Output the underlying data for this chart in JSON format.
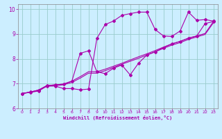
{
  "xlabel": "Windchill (Refroidissement éolien,°C)",
  "bg_color": "#cceeff",
  "grid_color": "#99cccc",
  "line_color": "#aa00aa",
  "xlim": [
    -0.5,
    23.5
  ],
  "ylim": [
    6,
    10.2
  ],
  "xticks": [
    0,
    1,
    2,
    3,
    4,
    5,
    6,
    7,
    8,
    9,
    10,
    11,
    12,
    13,
    14,
    15,
    16,
    17,
    18,
    19,
    20,
    21,
    22,
    23
  ],
  "yticks": [
    6,
    7,
    8,
    9,
    10
  ],
  "line1_x": [
    0,
    1,
    2,
    3,
    4,
    5,
    6,
    7,
    8,
    9,
    10,
    11,
    12,
    13,
    14,
    15,
    16,
    17,
    18,
    19,
    20,
    21,
    22,
    23
  ],
  "line1_y": [
    6.6,
    6.65,
    6.7,
    6.9,
    6.9,
    6.8,
    6.8,
    6.75,
    6.78,
    8.82,
    9.38,
    9.52,
    9.75,
    9.82,
    9.88,
    9.88,
    9.18,
    8.92,
    8.9,
    9.12,
    9.88,
    9.55,
    9.58,
    9.52
  ],
  "line2_x": [
    0,
    1,
    2,
    3,
    4,
    5,
    6,
    7,
    8,
    9,
    10,
    11,
    12,
    13,
    14,
    15,
    16,
    17,
    18,
    19,
    20,
    21,
    22,
    23
  ],
  "line2_y": [
    6.6,
    6.65,
    6.72,
    6.9,
    6.92,
    6.95,
    7.05,
    7.22,
    7.42,
    7.42,
    7.52,
    7.65,
    7.78,
    7.9,
    8.02,
    8.15,
    8.28,
    8.42,
    8.55,
    8.65,
    8.78,
    8.88,
    8.98,
    9.45
  ],
  "line3_x": [
    0,
    1,
    2,
    3,
    4,
    5,
    6,
    7,
    8,
    9,
    10,
    11,
    12,
    13,
    14,
    15,
    16,
    17,
    18,
    19,
    20,
    21,
    22,
    23
  ],
  "line3_y": [
    6.6,
    6.66,
    6.74,
    6.92,
    6.95,
    6.98,
    7.1,
    7.28,
    7.48,
    7.48,
    7.58,
    7.7,
    7.82,
    7.95,
    8.08,
    8.2,
    8.33,
    8.47,
    8.6,
    8.7,
    8.83,
    8.92,
    9.02,
    9.5
  ],
  "line4_x": [
    0,
    1,
    2,
    3,
    4,
    5,
    6,
    7,
    8,
    9,
    10,
    11,
    12,
    13,
    14,
    15,
    16,
    17,
    18,
    19,
    20,
    21,
    22,
    23
  ],
  "line4_y": [
    6.6,
    6.66,
    6.74,
    6.92,
    6.95,
    6.98,
    7.1,
    8.22,
    8.32,
    7.48,
    7.4,
    7.62,
    7.75,
    7.35,
    7.82,
    8.15,
    8.28,
    8.45,
    8.6,
    8.7,
    8.83,
    8.92,
    9.42,
    9.5
  ]
}
